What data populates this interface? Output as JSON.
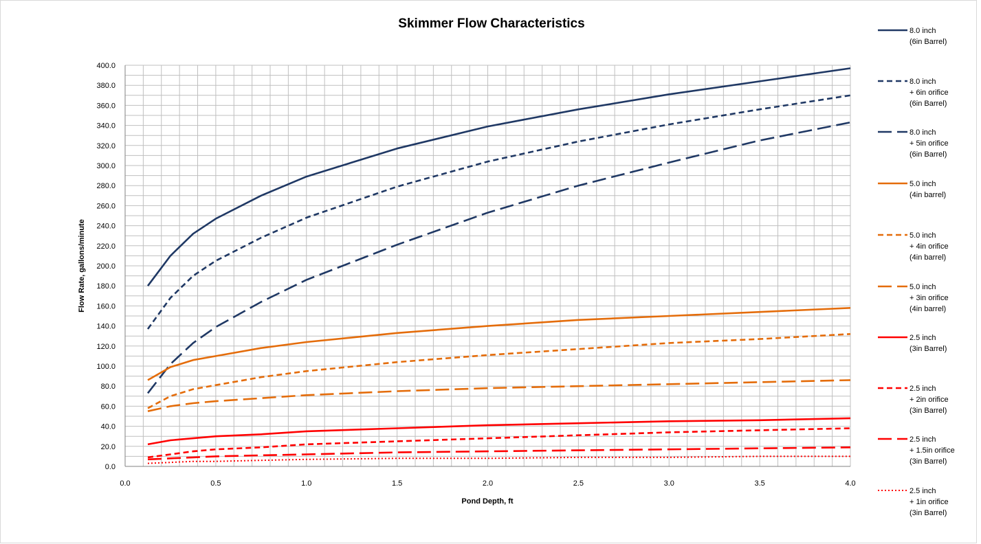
{
  "chart_data": {
    "type": "line",
    "title": "Skimmer Flow Characteristics",
    "xlabel": "Pond Depth, ft",
    "ylabel": "Flow Rate, gallons/minute",
    "xlim": [
      0,
      4
    ],
    "ylim": [
      0,
      400
    ],
    "x_ticks": [
      "0.0",
      "0.5",
      "1.0",
      "1.5",
      "2.0",
      "2.5",
      "3.0",
      "3.5",
      "4.0"
    ],
    "y_ticks": [
      "0.0",
      "20.0",
      "40.0",
      "60.0",
      "80.0",
      "100.0",
      "120.0",
      "140.0",
      "160.0",
      "180.0",
      "200.0",
      "220.0",
      "240.0",
      "260.0",
      "280.0",
      "300.0",
      "320.0",
      "340.0",
      "360.0",
      "380.0",
      "400.0"
    ],
    "grid": true,
    "legend_position": "right",
    "x": [
      0.125,
      0.25,
      0.375,
      0.5,
      0.75,
      1.0,
      1.5,
      2.0,
      2.5,
      3.0,
      3.5,
      4.0
    ],
    "series": [
      {
        "label_lines": [
          "8.0 inch",
          "(6in Barrel)"
        ],
        "color": "#1f3864",
        "dash": "solid",
        "values": [
          180,
          210,
          232,
          247,
          270,
          289,
          317,
          339,
          356,
          371,
          384,
          397
        ]
      },
      {
        "label_lines": [
          "8.0 inch",
          "+ 6in orifice",
          "(6in Barrel)"
        ],
        "color": "#1f3864",
        "dash": "short",
        "values": [
          137,
          168,
          190,
          205,
          228,
          248,
          279,
          304,
          324,
          341,
          356,
          370
        ]
      },
      {
        "label_lines": [
          "8.0 inch",
          "+ 5in orifice",
          "(6in Barrel)"
        ],
        "color": "#1f3864",
        "dash": "long",
        "values": [
          73,
          102,
          123,
          139,
          164,
          186,
          221,
          253,
          280,
          303,
          325,
          343
        ]
      },
      {
        "label_lines": [
          "5.0 inch",
          "(4in barrel)"
        ],
        "color": "#e46c0a",
        "dash": "solid",
        "values": [
          86,
          99,
          106,
          110,
          118,
          124,
          133,
          140,
          146,
          150,
          154,
          158
        ]
      },
      {
        "label_lines": [
          "5.0 inch",
          "+ 4in orifice",
          "(4in barrel)"
        ],
        "color": "#e46c0a",
        "dash": "short",
        "values": [
          58,
          70,
          77,
          81,
          89,
          95,
          104,
          111,
          117,
          123,
          127,
          132
        ]
      },
      {
        "label_lines": [
          "5.0 inch",
          "+ 3in orifice",
          "(4in barrel)"
        ],
        "color": "#e46c0a",
        "dash": "long",
        "values": [
          55,
          60,
          63,
          65,
          68,
          71,
          75,
          78,
          80,
          82,
          84,
          86
        ]
      },
      {
        "label_lines": [
          "2.5 inch",
          "(3in Barrel)"
        ],
        "color": "#ff0000",
        "dash": "solid",
        "values": [
          22,
          26,
          28,
          30,
          32,
          35,
          38,
          41,
          43,
          45,
          46,
          48
        ]
      },
      {
        "label_lines": [
          "2.5 inch",
          "+ 2in orifice",
          "(3in Barrel)"
        ],
        "color": "#ff0000",
        "dash": "short",
        "values": [
          9,
          12,
          15,
          17,
          19,
          22,
          25,
          28,
          31,
          34,
          36,
          38
        ]
      },
      {
        "label_lines": [
          "2.5 inch",
          "+ 1.5in orifice",
          "(3in Barrel)"
        ],
        "color": "#ff0000",
        "dash": "long",
        "values": [
          7,
          8,
          9,
          10,
          11,
          12,
          14,
          15,
          16,
          17,
          18,
          19
        ]
      },
      {
        "label_lines": [
          "2.5 inch",
          "+ 1in orifice",
          "(3in Barrel)"
        ],
        "color": "#ff0000",
        "dash": "dot",
        "values": [
          3,
          4,
          5,
          5,
          6,
          7,
          8,
          8,
          9,
          9,
          10,
          10
        ]
      }
    ]
  }
}
